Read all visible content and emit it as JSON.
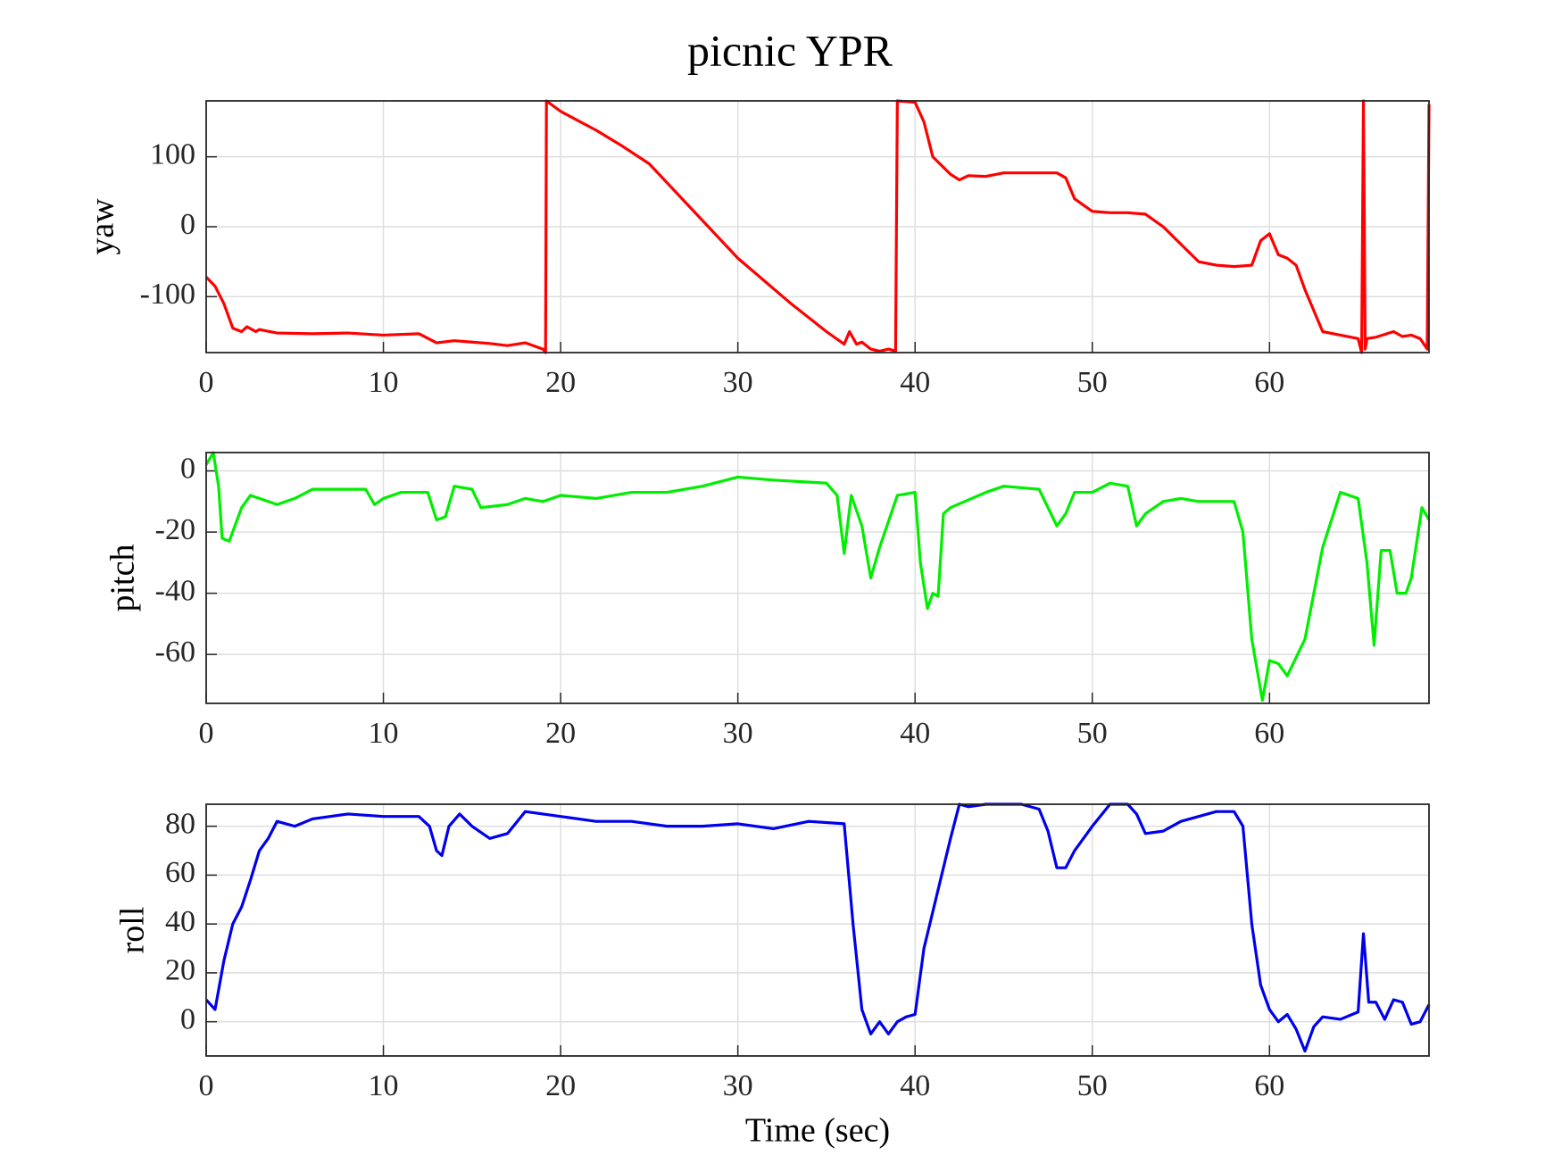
{
  "title": "picnic YPR",
  "chart_data": [
    {
      "type": "line",
      "ylabel": "yaw",
      "color": "#ff0000",
      "grid": true,
      "xlim": [
        0,
        69
      ],
      "xticks": [
        0,
        10,
        20,
        30,
        40,
        50,
        60
      ],
      "ylim": [
        -180,
        180
      ],
      "yticks": [
        -100,
        0,
        100
      ],
      "x": [
        0,
        0.5,
        1,
        1.5,
        2,
        2.3,
        2.8,
        3,
        4,
        6,
        8,
        10,
        12,
        13,
        14,
        15,
        16,
        17,
        18,
        19,
        19.15,
        19.2,
        20,
        22,
        23.5,
        25,
        30,
        33,
        35,
        36,
        36.3,
        36.7,
        37,
        37.5,
        38,
        38.5,
        38.9,
        39,
        40,
        40.5,
        41,
        42,
        42.5,
        43,
        44,
        45,
        48,
        48.5,
        49,
        50,
        51,
        52,
        53,
        54,
        55,
        56,
        57,
        58,
        59,
        59.5,
        60,
        60.5,
        61,
        61.5,
        62,
        63,
        64,
        65,
        65.2,
        65.3,
        65.4,
        65.5,
        66,
        67,
        67.5,
        68,
        68.5,
        68.9,
        69
      ],
      "values": [
        -72,
        -85,
        -110,
        -145,
        -150,
        -143,
        -150,
        -147,
        -152,
        -153,
        -152,
        -155,
        -153,
        -166,
        -163,
        -165,
        -167,
        -170,
        -166,
        -175,
        -180,
        180,
        165,
        138,
        115,
        90,
        -45,
        -110,
        -150,
        -168,
        -150,
        -168,
        -165,
        -175,
        -178,
        -175,
        -178,
        180,
        178,
        150,
        100,
        75,
        67,
        73,
        72,
        77,
        77,
        70,
        40,
        22,
        20,
        20,
        18,
        0,
        -25,
        -50,
        -55,
        -57,
        -55,
        -20,
        -10,
        -40,
        -45,
        -55,
        -90,
        -150,
        -155,
        -160,
        -180,
        180,
        -175,
        -160,
        -158,
        -150,
        -157,
        -155,
        -160,
        -175,
        175
      ]
    },
    {
      "type": "line",
      "ylabel": "pitch",
      "color": "#00ee00",
      "grid": true,
      "xlim": [
        0,
        69
      ],
      "xticks": [
        0,
        10,
        20,
        30,
        40,
        50,
        60
      ],
      "ylim": [
        -76,
        6
      ],
      "yticks": [
        -60,
        -40,
        -20,
        0
      ],
      "x": [
        0,
        0.4,
        0.7,
        0.9,
        1.3,
        2,
        2.5,
        3,
        4,
        5,
        6,
        9,
        9.5,
        10,
        11,
        12.5,
        13,
        13.5,
        14,
        15,
        15.5,
        17,
        18,
        19,
        20,
        22,
        24,
        26,
        28,
        30,
        32,
        35,
        35.6,
        36,
        36.4,
        37,
        37.5,
        38,
        39,
        40,
        40.3,
        40.7,
        41,
        41.3,
        41.6,
        42,
        44,
        45,
        47,
        48,
        48.5,
        49,
        50,
        51,
        52,
        52.5,
        53,
        54,
        55,
        56,
        58,
        58.5,
        59,
        59.6,
        60,
        60.5,
        61,
        62,
        63,
        64,
        65,
        65.5,
        65.9,
        66.3,
        66.8,
        67.2,
        67.7,
        68,
        68.6,
        69
      ],
      "values": [
        2,
        6,
        -5,
        -22,
        -23,
        -12,
        -8,
        -9,
        -11,
        -9,
        -6,
        -6,
        -11,
        -9,
        -7,
        -7,
        -16,
        -15,
        -5,
        -6,
        -12,
        -11,
        -9,
        -10,
        -8,
        -9,
        -7,
        -7,
        -5,
        -2,
        -3,
        -4,
        -8,
        -27,
        -8,
        -18,
        -35,
        -25,
        -8,
        -7,
        -30,
        -45,
        -40,
        -41,
        -14,
        -12,
        -7,
        -5,
        -6,
        -18,
        -14,
        -7,
        -7,
        -4,
        -5,
        -18,
        -14,
        -10,
        -9,
        -10,
        -10,
        -20,
        -55,
        -75,
        -62,
        -63,
        -67,
        -55,
        -25,
        -7,
        -9,
        -30,
        -57,
        -26,
        -26,
        -40,
        -40,
        -35,
        -12,
        -16
      ]
    },
    {
      "type": "line",
      "ylabel": "roll",
      "xlabel": "Time (sec)",
      "color": "#0000ee",
      "grid": true,
      "xlim": [
        0,
        69
      ],
      "xticks": [
        0,
        10,
        20,
        30,
        40,
        50,
        60
      ],
      "ylim": [
        -14,
        89
      ],
      "yticks": [
        0,
        20,
        40,
        60,
        80
      ],
      "x": [
        0,
        0.5,
        1,
        1.5,
        2,
        2.5,
        3,
        3.5,
        4,
        5,
        6,
        8,
        10,
        12,
        12.6,
        13,
        13.3,
        13.7,
        14.3,
        15,
        16,
        17,
        18,
        20,
        22,
        24,
        26,
        28,
        30,
        32,
        34,
        36,
        36.5,
        37,
        37.5,
        38,
        38.5,
        39,
        39.5,
        40,
        40.5,
        41,
        41.5,
        42,
        42.5,
        43,
        44,
        46,
        47,
        47.5,
        48,
        48.5,
        49,
        50,
        51,
        52,
        52.5,
        53,
        54,
        55,
        56,
        57,
        58,
        58.5,
        59,
        59.5,
        60,
        60.5,
        61,
        61.5,
        62,
        62.5,
        63,
        64,
        65,
        65.3,
        65.6,
        66,
        66.5,
        67,
        67.5,
        68,
        68.5,
        69
      ],
      "values": [
        9,
        5,
        25,
        40,
        47,
        58,
        70,
        75,
        82,
        80,
        83,
        85,
        84,
        84,
        80,
        70,
        68,
        80,
        85,
        80,
        75,
        77,
        86,
        84,
        82,
        82,
        80,
        80,
        81,
        79,
        82,
        81,
        40,
        5,
        -5,
        0,
        -5,
        0,
        2,
        3,
        30,
        45,
        60,
        75,
        89,
        88,
        89,
        89,
        87,
        78,
        63,
        63,
        70,
        80,
        89,
        89,
        85,
        77,
        78,
        82,
        84,
        86,
        86,
        80,
        40,
        15,
        5,
        0,
        3,
        -3,
        -12,
        -2,
        2,
        1,
        4,
        36,
        8,
        8,
        1,
        9,
        8,
        -1,
        0,
        7
      ]
    }
  ]
}
